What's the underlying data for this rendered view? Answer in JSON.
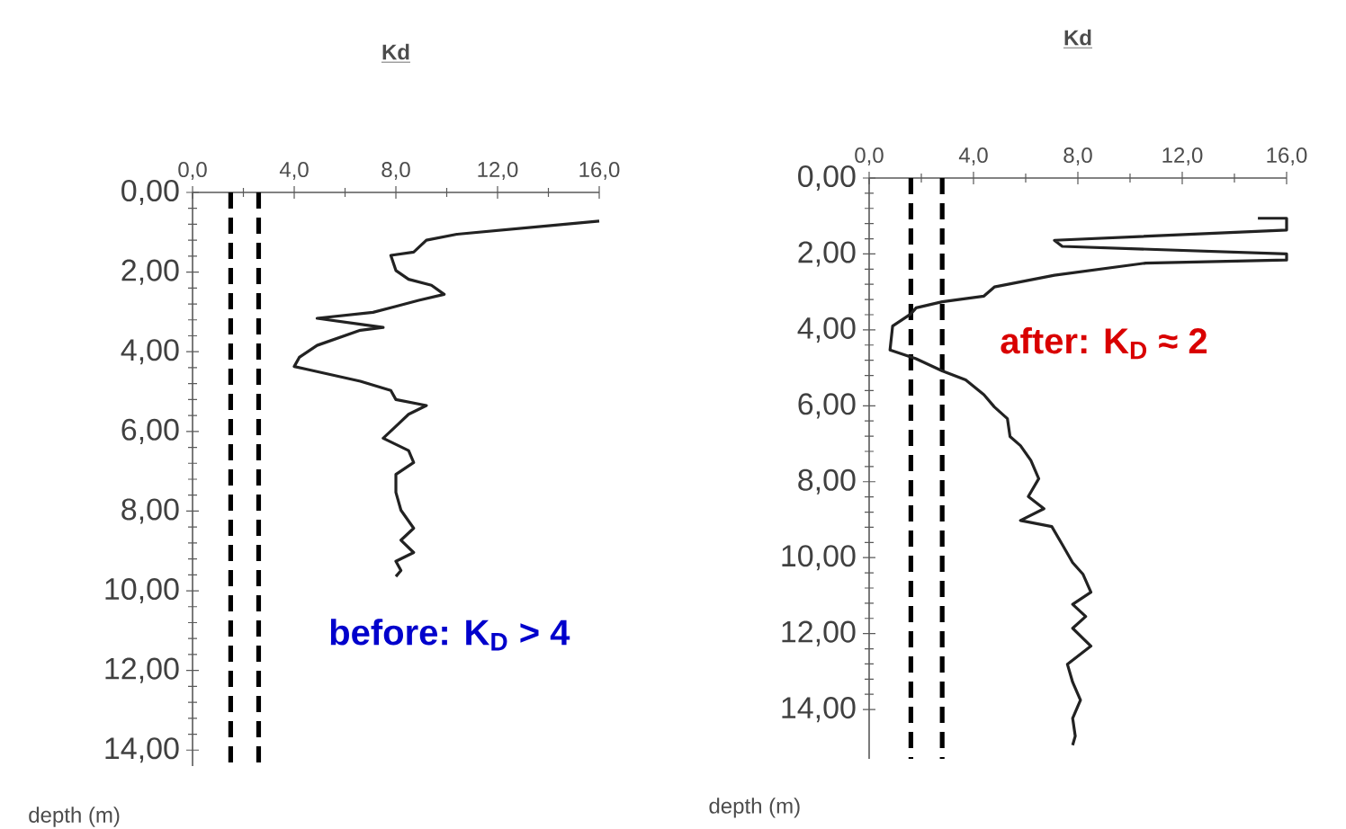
{
  "chart_data": [
    {
      "type": "line",
      "xlabel": "Kd",
      "ylabel": "depth (m)",
      "annotations": [
        "**before:  K$_{D}$ > 4**"
      ],
      "xlim": [
        0,
        16
      ],
      "ylim": [
        14.4,
        0
      ],
      "grid": false,
      "marker": "none",
      "line_style": "solid",
      "xticks": [
        {
          "value": 0,
          "label": "0,0"
        },
        {
          "value": 4,
          "label": "4,0"
        },
        {
          "value": 8,
          "label": "8,0"
        },
        {
          "value": 12,
          "label": "12,0"
        },
        {
          "value": 16,
          "label": "16,0"
        }
      ],
      "yticks": [
        {
          "value": 0,
          "label": "0,00"
        },
        {
          "value": 2,
          "label": "2,00"
        },
        {
          "value": 4,
          "label": "4,00"
        },
        {
          "value": 6,
          "label": "6,00"
        },
        {
          "value": 8,
          "label": "8,00"
        },
        {
          "value": 10,
          "label": "10,00"
        },
        {
          "value": 12,
          "label": "12,00"
        },
        {
          "value": 14,
          "label": "14,00"
        }
      ],
      "ref_lines": [
        {
          "axis": "x",
          "value": 1.5,
          "color": "#000000",
          "line_style": "dashed"
        },
        {
          "axis": "x",
          "value": 2.6,
          "color": "#000000",
          "line_style": "dashed"
        }
      ],
      "series": [
        {
          "color": "#222222",
          "x": [
            16.0,
            10.4,
            9.2,
            8.7,
            7.8,
            8.0,
            8.5,
            9.4,
            9.9,
            8.9,
            8.0,
            7.1,
            4.9,
            6.6,
            7.5,
            6.6,
            4.9,
            4.2,
            4.0,
            4.5,
            6.6,
            7.8,
            8.0,
            9.2,
            8.5,
            8.0,
            7.5,
            8.5,
            8.7,
            8.0,
            8.0,
            8.2,
            8.7,
            8.2,
            8.7,
            8.0,
            8.2,
            8.0
          ],
          "values": [
            0.72,
            1.05,
            1.2,
            1.5,
            1.58,
            1.96,
            2.18,
            2.33,
            2.56,
            2.71,
            2.86,
            3.01,
            3.16,
            3.31,
            3.39,
            3.46,
            3.84,
            4.14,
            4.37,
            4.44,
            4.74,
            4.97,
            5.2,
            5.35,
            5.57,
            5.87,
            6.17,
            6.48,
            6.78,
            7.08,
            7.53,
            7.98,
            8.43,
            8.73,
            9.04,
            9.26,
            9.49,
            9.64
          ]
        }
      ]
    },
    {
      "type": "line",
      "xlabel": "Kd",
      "ylabel": "depth (m)",
      "annotations": [
        "**after:  K$_{D}$ ≈ 2**"
      ],
      "xlim": [
        0,
        16
      ],
      "ylim": [
        15.3,
        0
      ],
      "grid": false,
      "marker": "none",
      "line_style": "solid",
      "xticks": [
        {
          "value": 0,
          "label": "0,0"
        },
        {
          "value": 4,
          "label": "4,0"
        },
        {
          "value": 8,
          "label": "8,0"
        },
        {
          "value": 12,
          "label": "12,0"
        },
        {
          "value": 16,
          "label": "16,0"
        }
      ],
      "yticks": [
        {
          "value": 0,
          "label": "0,00"
        },
        {
          "value": 2,
          "label": "2,00"
        },
        {
          "value": 4,
          "label": "4,00"
        },
        {
          "value": 6,
          "label": "6,00"
        },
        {
          "value": 8,
          "label": "8,00"
        },
        {
          "value": 10,
          "label": "10,00"
        },
        {
          "value": 12,
          "label": "12,00"
        },
        {
          "value": 14,
          "label": "14,00"
        }
      ],
      "ref_lines": [
        {
          "axis": "x",
          "value": 1.6,
          "color": "#000000",
          "line_style": "dashed"
        },
        {
          "axis": "x",
          "value": 2.8,
          "color": "#000000",
          "line_style": "dashed"
        }
      ],
      "series": [
        {
          "color": "#222222",
          "x": [
            14.9,
            16.0,
            16.0,
            7.1,
            7.4,
            16.0,
            16.0,
            10.6,
            7.1,
            4.8,
            4.4,
            2.8,
            1.8,
            1.6,
            0.9,
            0.8,
            1.8,
            2.8,
            3.7,
            4.4,
            4.8,
            5.3,
            5.4,
            5.8,
            6.2,
            6.5,
            6.1,
            6.7,
            5.8,
            7.0,
            7.4,
            7.8,
            8.2,
            8.5,
            7.8,
            8.3,
            7.8,
            8.5,
            7.6,
            7.8,
            8.1,
            7.8,
            7.9,
            7.8
          ],
          "values": [
            1.06,
            1.06,
            1.37,
            1.64,
            1.8,
            2.0,
            2.16,
            2.24,
            2.56,
            2.87,
            3.11,
            3.26,
            3.42,
            3.58,
            3.9,
            4.53,
            4.76,
            5.08,
            5.32,
            5.71,
            6.03,
            6.34,
            6.81,
            7.05,
            7.44,
            7.92,
            8.39,
            8.71,
            9.02,
            9.18,
            9.65,
            10.13,
            10.44,
            10.91,
            11.23,
            11.55,
            11.86,
            12.33,
            12.81,
            13.28,
            13.75,
            14.23,
            14.7,
            14.94
          ]
        }
      ]
    }
  ]
}
